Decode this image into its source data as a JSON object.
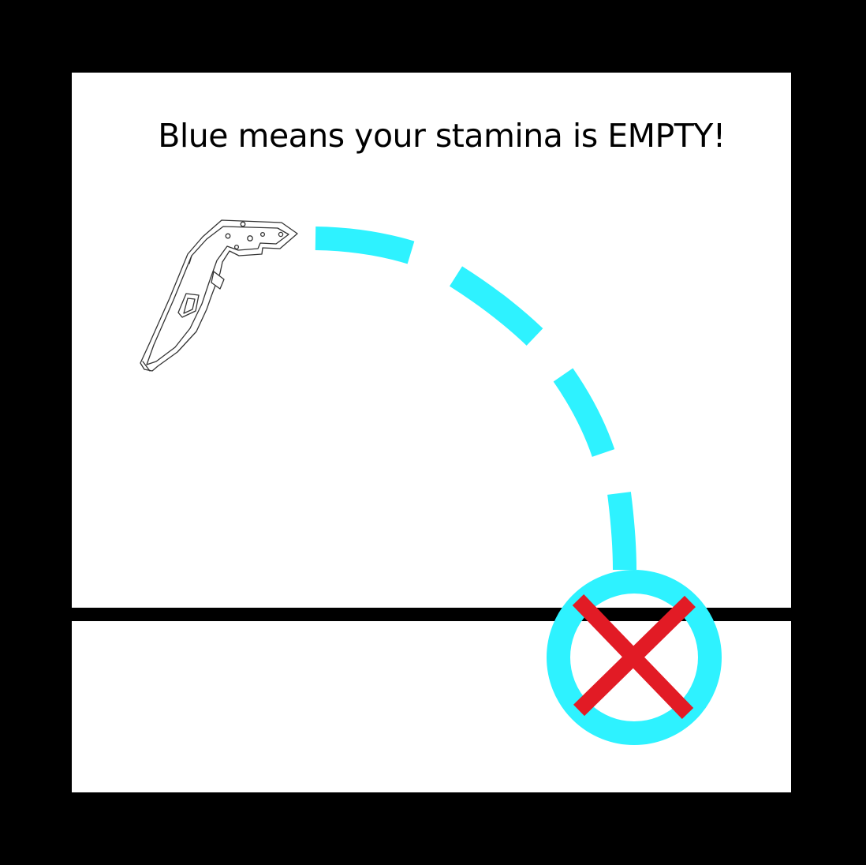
{
  "instruction": {
    "text": "Blue means your stamina is EMPTY!"
  },
  "colors": {
    "frame": "#000000",
    "panel": "#ffffff",
    "stamina_trail": "#2ef2ff",
    "fail_mark": "#e21b25",
    "ground_line": "#000000"
  },
  "icons": {
    "controller": "vr-controller-icon",
    "trajectory": "dashed-arc-icon",
    "landing_ring": "ring-icon",
    "fail": "x-mark-icon"
  }
}
